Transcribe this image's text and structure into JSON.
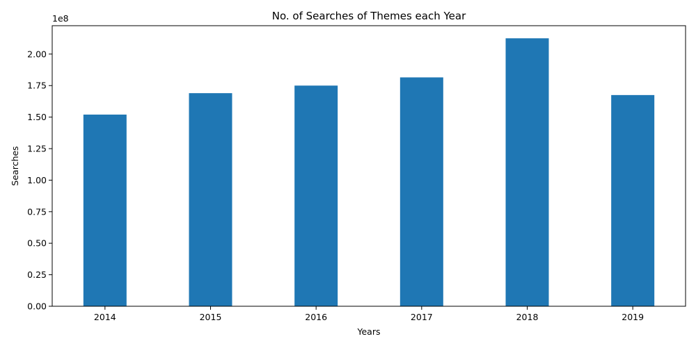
{
  "chart_data": {
    "type": "bar",
    "title": "No. of Searches of Themes each Year",
    "xlabel": "Years",
    "ylabel": "Searches",
    "categories": [
      "2014",
      "2015",
      "2016",
      "2017",
      "2018",
      "2019"
    ],
    "values": [
      152000000,
      169000000,
      175000000,
      181500000,
      212500000,
      167500000
    ],
    "ylim": [
      0,
      222500000
    ],
    "yticks": [
      0,
      25000000,
      50000000,
      75000000,
      100000000,
      125000000,
      150000000,
      175000000,
      200000000
    ],
    "ytick_labels": [
      "0.00",
      "0.25",
      "0.50",
      "0.75",
      "1.00",
      "1.25",
      "1.50",
      "1.75",
      "2.00"
    ],
    "y_offset_label": "1e8",
    "grid": false,
    "bar_color": "#1f77b4"
  }
}
